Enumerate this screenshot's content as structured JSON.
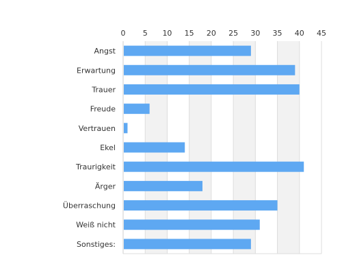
{
  "chart_data": {
    "type": "bar",
    "orientation": "horizontal",
    "categories": [
      "Angst",
      "Erwartung",
      "Trauer",
      "Freude",
      "Vertrauen",
      "Ekel",
      "Traurigkeit",
      "Ärger",
      "Überraschung",
      "Weiß nicht",
      "Sonstiges:"
    ],
    "values": [
      29,
      39,
      40,
      6,
      1,
      14,
      41,
      18,
      35,
      31,
      29
    ],
    "title": "",
    "xlabel": "",
    "ylabel": "",
    "xlim": [
      0,
      45
    ],
    "xticks": [
      "0",
      "5",
      "10",
      "15",
      "20",
      "25",
      "30",
      "35",
      "40",
      "45"
    ],
    "x_axis_position": "top",
    "grid": true,
    "band_color": "#f2f2f2",
    "bar_color": "#5ea8f2",
    "gridline_color": "#dddddd"
  }
}
